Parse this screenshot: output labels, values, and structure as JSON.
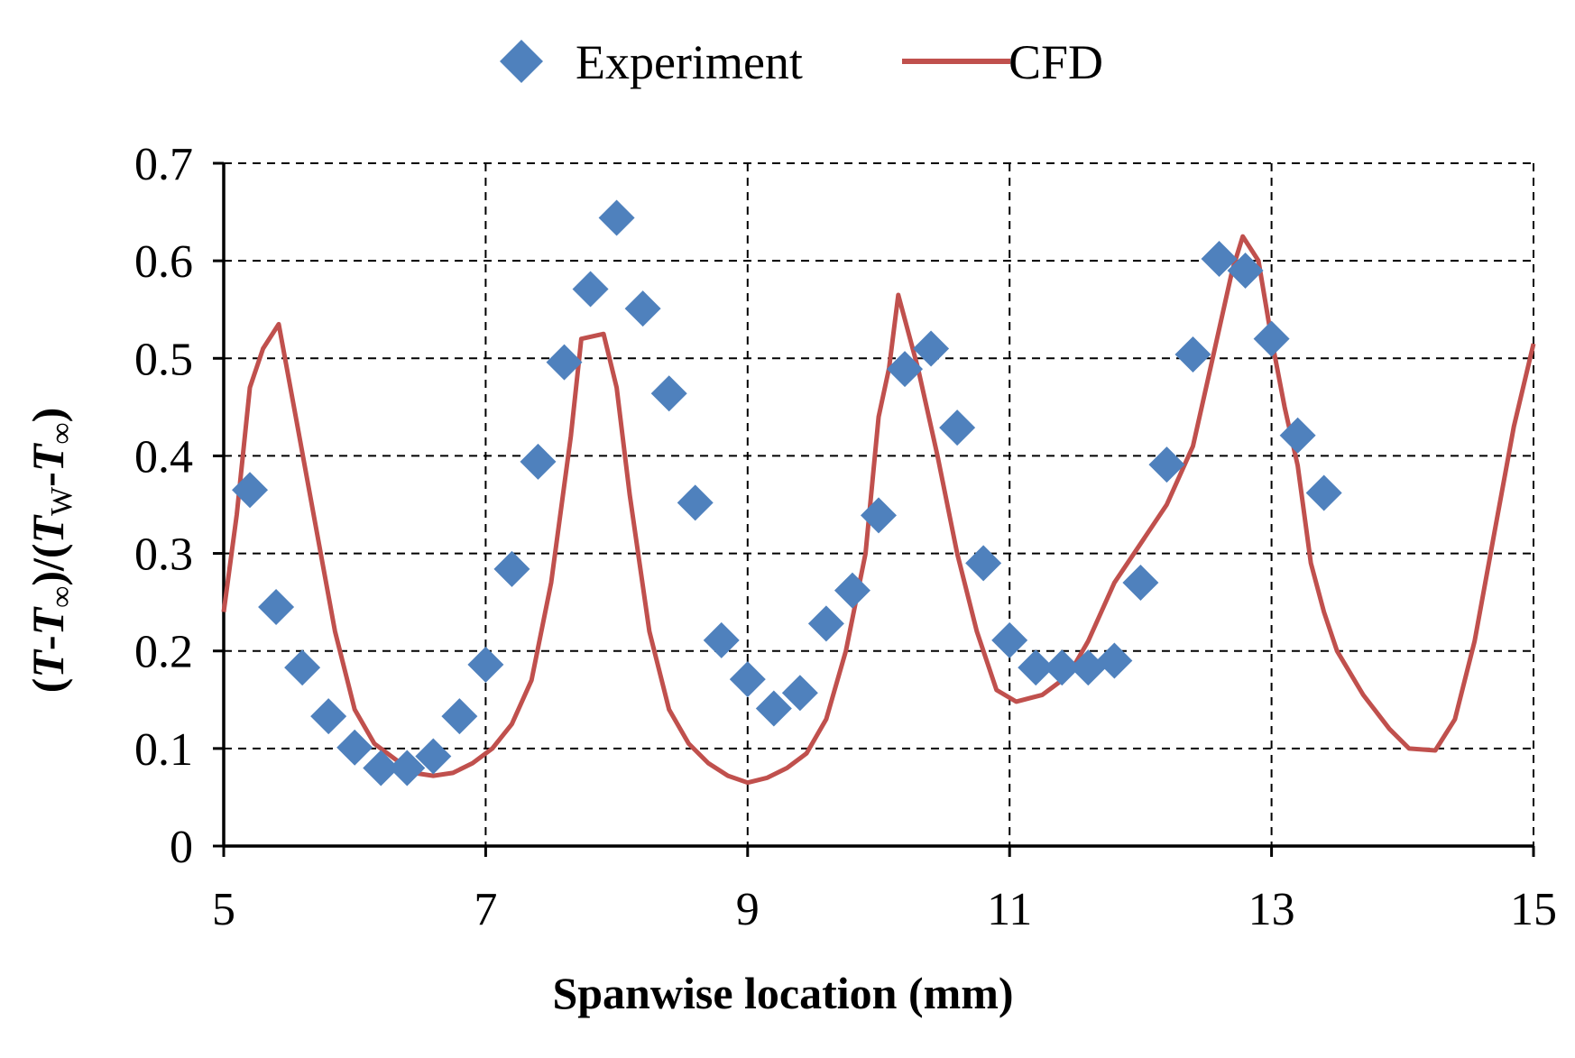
{
  "chart_data": {
    "type": "scatter",
    "title": "",
    "xlabel": "Spanwise location (mm)",
    "ylabel_parts": [
      "(",
      "T",
      "-",
      "T",
      "∞",
      ")/(",
      "T",
      "W",
      "-",
      "T",
      "∞",
      ")"
    ],
    "xlim": [
      5,
      15
    ],
    "ylim": [
      0,
      0.7
    ],
    "x_ticks": [
      "5",
      "7",
      "9",
      "11",
      "13",
      "15"
    ],
    "y_ticks": [
      "0",
      "0.1",
      "0.2",
      "0.3",
      "0.4",
      "0.5",
      "0.6",
      "0.7"
    ],
    "grid": true,
    "legend_position": "top-center",
    "series": [
      {
        "name": "Experiment",
        "kind": "scatter",
        "marker": "diamond",
        "color": "#4F81BD",
        "points": [
          [
            5.2,
            0.365
          ],
          [
            5.4,
            0.245
          ],
          [
            5.6,
            0.183
          ],
          [
            5.8,
            0.133
          ],
          [
            6.0,
            0.101
          ],
          [
            6.2,
            0.08
          ],
          [
            6.4,
            0.08
          ],
          [
            6.6,
            0.092
          ],
          [
            6.8,
            0.133
          ],
          [
            7.0,
            0.186
          ],
          [
            7.2,
            0.284
          ],
          [
            7.4,
            0.394
          ],
          [
            7.6,
            0.496
          ],
          [
            7.8,
            0.571
          ],
          [
            8.0,
            0.644
          ],
          [
            8.2,
            0.551
          ],
          [
            8.4,
            0.464
          ],
          [
            8.6,
            0.352
          ],
          [
            8.8,
            0.211
          ],
          [
            9.0,
            0.171
          ],
          [
            9.2,
            0.141
          ],
          [
            9.4,
            0.157
          ],
          [
            9.6,
            0.228
          ],
          [
            9.8,
            0.262
          ],
          [
            10.0,
            0.339
          ],
          [
            10.2,
            0.489
          ],
          [
            10.4,
            0.51
          ],
          [
            10.6,
            0.429
          ],
          [
            10.8,
            0.29
          ],
          [
            11.0,
            0.211
          ],
          [
            11.2,
            0.183
          ],
          [
            11.4,
            0.183
          ],
          [
            11.6,
            0.183
          ],
          [
            11.8,
            0.19
          ],
          [
            12.0,
            0.27
          ],
          [
            12.2,
            0.391
          ],
          [
            12.4,
            0.504
          ],
          [
            12.6,
            0.602
          ],
          [
            12.8,
            0.59
          ],
          [
            13.0,
            0.52
          ],
          [
            13.2,
            0.421
          ],
          [
            13.4,
            0.362
          ]
        ]
      },
      {
        "name": "CFD",
        "kind": "line",
        "color": "#C0504D",
        "points": [
          [
            5.0,
            0.24
          ],
          [
            5.1,
            0.34
          ],
          [
            5.2,
            0.47
          ],
          [
            5.3,
            0.51
          ],
          [
            5.42,
            0.535
          ],
          [
            5.55,
            0.44
          ],
          [
            5.7,
            0.33
          ],
          [
            5.85,
            0.22
          ],
          [
            6.0,
            0.14
          ],
          [
            6.15,
            0.105
          ],
          [
            6.3,
            0.09
          ],
          [
            6.45,
            0.075
          ],
          [
            6.6,
            0.072
          ],
          [
            6.75,
            0.075
          ],
          [
            6.9,
            0.085
          ],
          [
            7.05,
            0.1
          ],
          [
            7.2,
            0.125
          ],
          [
            7.35,
            0.17
          ],
          [
            7.5,
            0.27
          ],
          [
            7.65,
            0.42
          ],
          [
            7.73,
            0.52
          ],
          [
            7.9,
            0.525
          ],
          [
            8.0,
            0.47
          ],
          [
            8.1,
            0.36
          ],
          [
            8.25,
            0.22
          ],
          [
            8.4,
            0.14
          ],
          [
            8.55,
            0.105
          ],
          [
            8.7,
            0.085
          ],
          [
            8.85,
            0.072
          ],
          [
            9.0,
            0.065
          ],
          [
            9.15,
            0.07
          ],
          [
            9.3,
            0.08
          ],
          [
            9.45,
            0.095
          ],
          [
            9.6,
            0.13
          ],
          [
            9.75,
            0.2
          ],
          [
            9.9,
            0.3
          ],
          [
            10.0,
            0.44
          ],
          [
            10.08,
            0.49
          ],
          [
            10.15,
            0.565
          ],
          [
            10.3,
            0.49
          ],
          [
            10.45,
            0.4
          ],
          [
            10.6,
            0.3
          ],
          [
            10.75,
            0.22
          ],
          [
            10.9,
            0.16
          ],
          [
            11.05,
            0.148
          ],
          [
            11.25,
            0.155
          ],
          [
            11.45,
            0.175
          ],
          [
            11.6,
            0.21
          ],
          [
            11.8,
            0.27
          ],
          [
            12.0,
            0.31
          ],
          [
            12.2,
            0.35
          ],
          [
            12.4,
            0.41
          ],
          [
            12.55,
            0.5
          ],
          [
            12.7,
            0.59
          ],
          [
            12.78,
            0.625
          ],
          [
            12.9,
            0.6
          ],
          [
            13.0,
            0.52
          ],
          [
            13.1,
            0.45
          ],
          [
            13.2,
            0.39
          ],
          [
            13.3,
            0.29
          ],
          [
            13.4,
            0.24
          ],
          [
            13.5,
            0.2
          ],
          [
            13.7,
            0.155
          ],
          [
            13.9,
            0.12
          ],
          [
            14.05,
            0.1
          ],
          [
            14.25,
            0.098
          ],
          [
            14.4,
            0.13
          ],
          [
            14.55,
            0.21
          ],
          [
            14.7,
            0.32
          ],
          [
            14.85,
            0.43
          ],
          [
            15.0,
            0.515
          ]
        ]
      }
    ]
  }
}
